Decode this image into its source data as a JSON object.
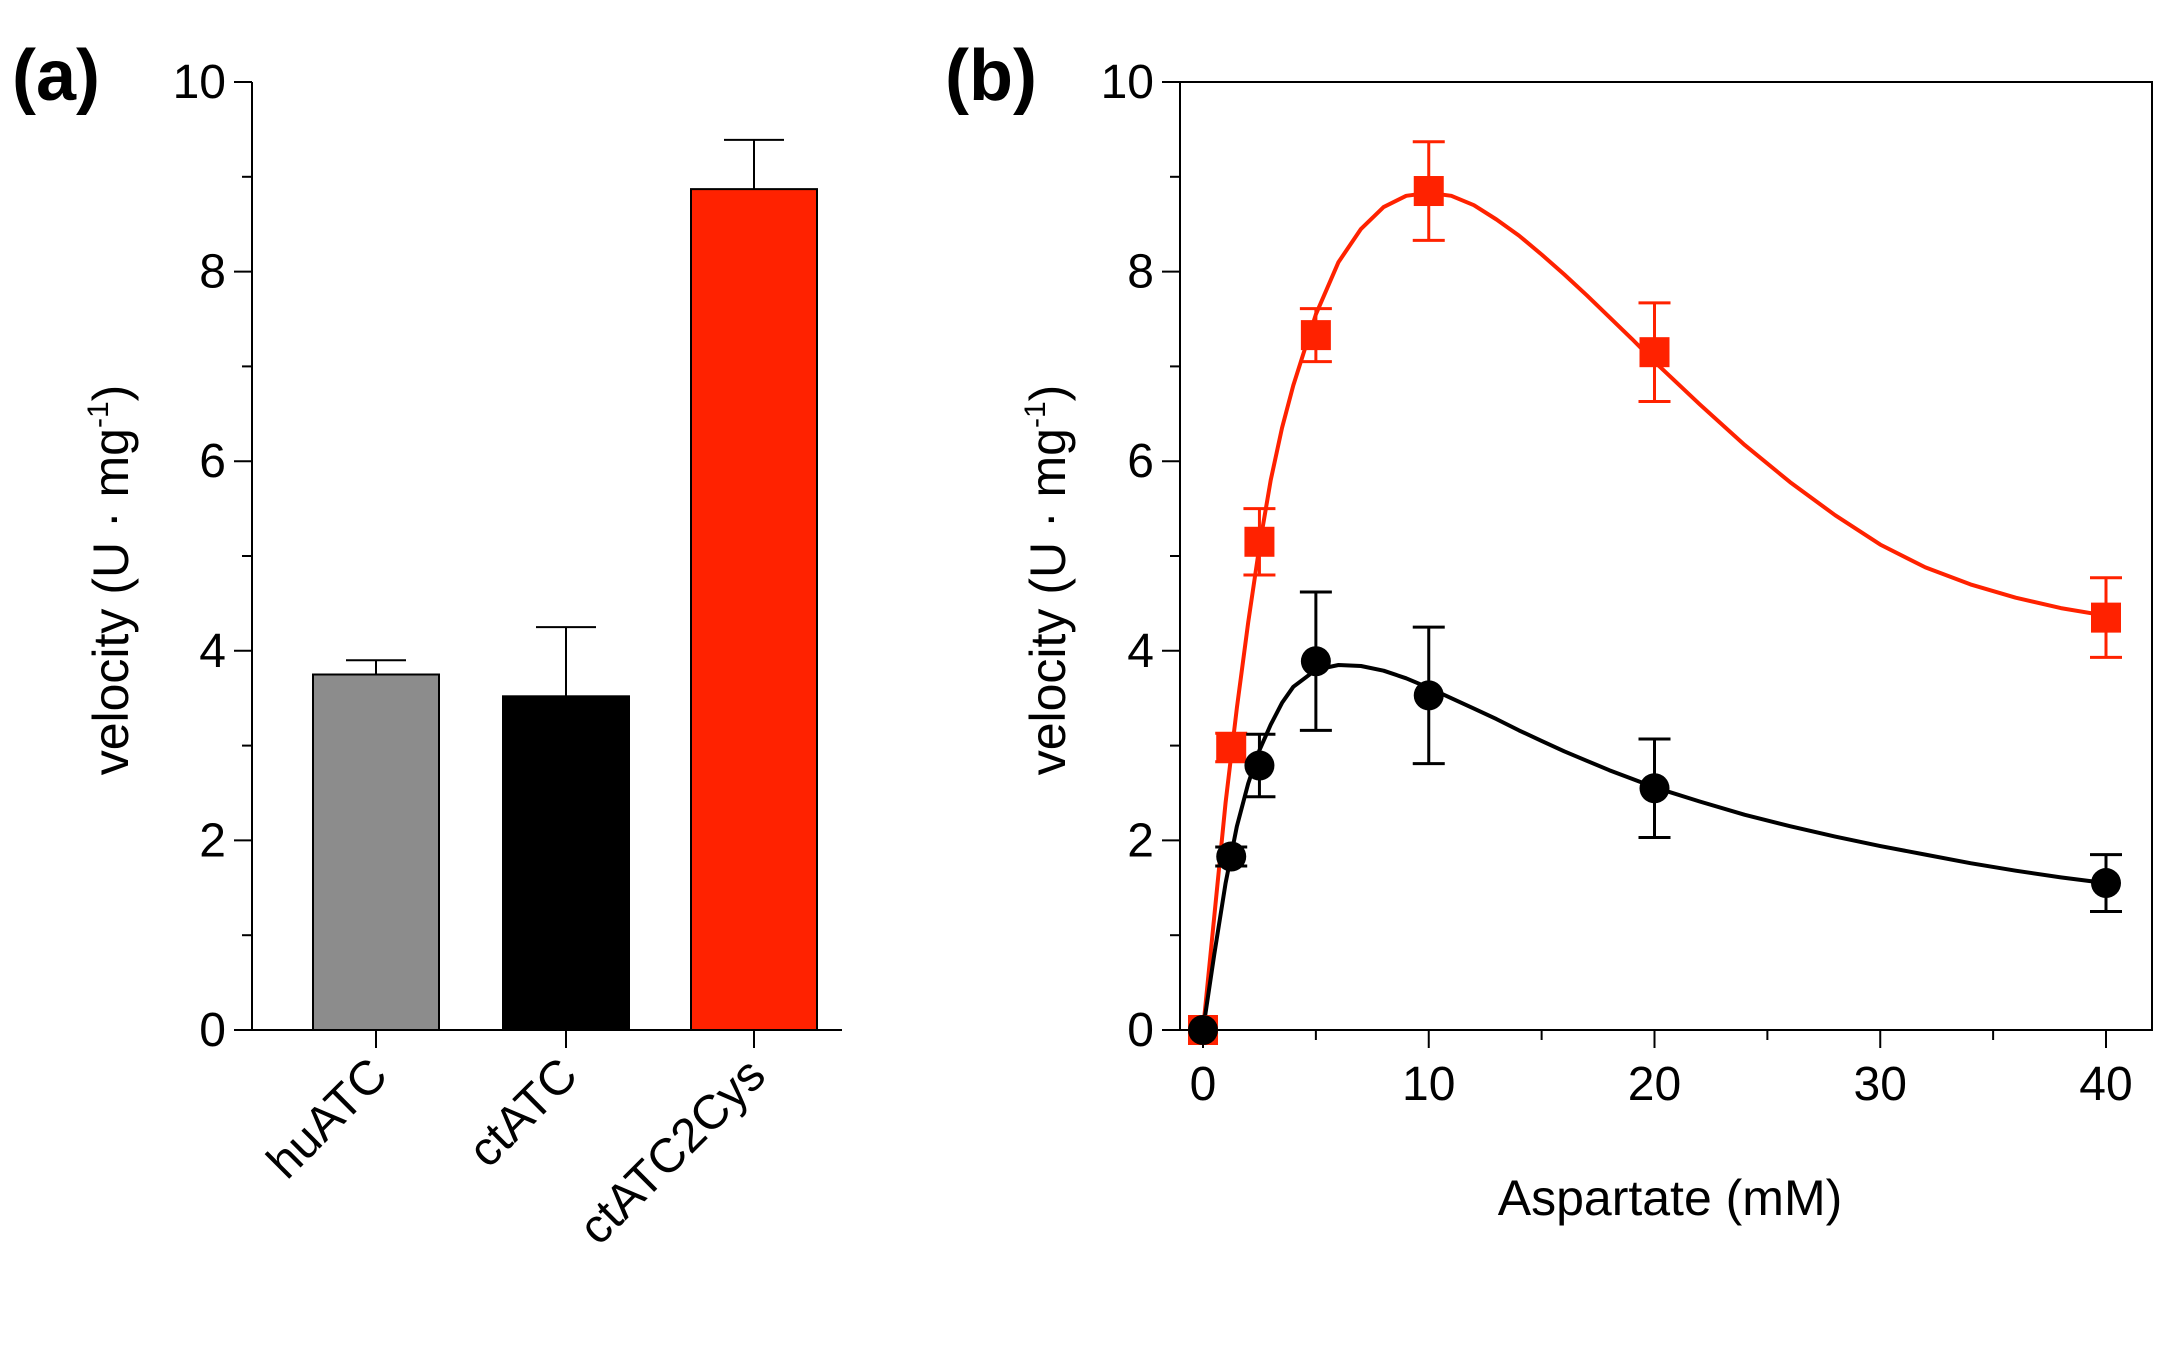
{
  "chart_data": [
    {
      "panel": "(a)",
      "type": "bar",
      "title": "",
      "xlabel": "",
      "ylabel": "velocity (U · mg",
      "ylabel_sup": "-1",
      "ylabel_close": ")",
      "ylim": [
        0,
        10
      ],
      "yticks": [
        0,
        2,
        4,
        6,
        8,
        10
      ],
      "grid": false,
      "categories": [
        "huATC",
        "ctATC",
        "ctATC2Cys"
      ],
      "values": [
        3.75,
        3.52,
        8.87
      ],
      "errors": [
        0.15,
        0.73,
        0.52
      ],
      "colors": [
        "#8c8c8c",
        "#000000",
        "#ff2200"
      ]
    },
    {
      "panel": "(b)",
      "type": "scatter",
      "title": "",
      "xlabel": "Aspartate (mM)",
      "ylabel": "velocity (U · mg",
      "ylabel_sup": "-1",
      "ylabel_close": ")",
      "xlim": [
        -1,
        42
      ],
      "ylim": [
        0,
        10
      ],
      "xticks": [
        0,
        10,
        20,
        30,
        40
      ],
      "yticks": [
        0,
        2,
        4,
        6,
        8,
        10
      ],
      "grid": false,
      "series": [
        {
          "name": "ctATC2Cys",
          "color": "#ff2200",
          "marker": "square",
          "x": [
            0,
            1.25,
            2.5,
            5,
            10,
            20,
            40
          ],
          "y": [
            0,
            2.98,
            5.15,
            7.33,
            8.85,
            7.15,
            4.35
          ],
          "err": [
            0,
            0.15,
            0.35,
            0.28,
            0.52,
            0.52,
            0.42
          ],
          "fit_x": [
            0,
            0.5,
            1,
            1.5,
            2,
            2.5,
            3,
            3.5,
            4,
            5,
            6,
            7,
            8,
            9,
            10,
            11,
            12,
            13,
            14,
            15,
            16,
            17,
            18,
            19,
            20,
            22,
            24,
            26,
            28,
            30,
            32,
            34,
            36,
            38,
            40
          ],
          "fit_y": [
            0,
            1.2,
            2.4,
            3.4,
            4.3,
            5.1,
            5.8,
            6.35,
            6.8,
            7.55,
            8.1,
            8.45,
            8.68,
            8.8,
            8.83,
            8.8,
            8.7,
            8.55,
            8.38,
            8.18,
            7.97,
            7.75,
            7.52,
            7.29,
            7.05,
            6.6,
            6.17,
            5.78,
            5.43,
            5.12,
            4.88,
            4.7,
            4.56,
            4.45,
            4.37
          ]
        },
        {
          "name": "ctATC",
          "color": "#000000",
          "marker": "circle",
          "x": [
            0,
            1.25,
            2.5,
            5,
            10,
            20,
            40
          ],
          "y": [
            0,
            1.83,
            2.79,
            3.89,
            3.53,
            2.55,
            1.55
          ],
          "err": [
            0,
            0.1,
            0.33,
            0.73,
            0.72,
            0.52,
            0.3
          ],
          "fit_x": [
            0,
            0.5,
            1,
            1.5,
            2,
            2.5,
            3,
            3.5,
            4,
            5,
            6,
            7,
            8,
            9,
            10,
            11,
            12,
            13,
            14,
            15,
            16,
            17,
            18,
            19,
            20,
            22,
            24,
            26,
            28,
            30,
            32,
            34,
            36,
            38,
            40
          ],
          "fit_y": [
            0,
            0.8,
            1.55,
            2.15,
            2.6,
            2.95,
            3.22,
            3.45,
            3.62,
            3.8,
            3.85,
            3.84,
            3.79,
            3.71,
            3.61,
            3.5,
            3.39,
            3.28,
            3.16,
            3.05,
            2.94,
            2.84,
            2.74,
            2.65,
            2.56,
            2.41,
            2.27,
            2.15,
            2.04,
            1.94,
            1.85,
            1.76,
            1.68,
            1.61,
            1.55
          ]
        }
      ]
    }
  ]
}
